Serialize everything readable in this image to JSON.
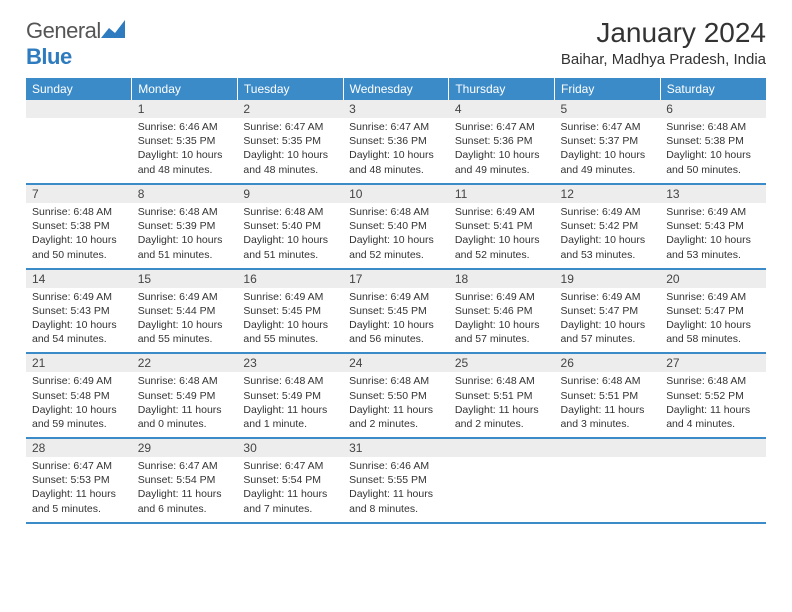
{
  "brand": {
    "name_a": "General",
    "name_b": "Blue"
  },
  "title": "January 2024",
  "location": "Baihar, Madhya Pradesh, India",
  "colors": {
    "header_bg": "#3b8bc9",
    "header_text": "#ffffff",
    "daynum_bg": "#ededed",
    "border": "#3b8bc9",
    "text": "#333333"
  },
  "day_labels": [
    "Sunday",
    "Monday",
    "Tuesday",
    "Wednesday",
    "Thursday",
    "Friday",
    "Saturday"
  ],
  "weeks": [
    [
      null,
      {
        "n": "1",
        "sunrise": "6:46 AM",
        "sunset": "5:35 PM",
        "daylight": "10 hours and 48 minutes."
      },
      {
        "n": "2",
        "sunrise": "6:47 AM",
        "sunset": "5:35 PM",
        "daylight": "10 hours and 48 minutes."
      },
      {
        "n": "3",
        "sunrise": "6:47 AM",
        "sunset": "5:36 PM",
        "daylight": "10 hours and 48 minutes."
      },
      {
        "n": "4",
        "sunrise": "6:47 AM",
        "sunset": "5:36 PM",
        "daylight": "10 hours and 49 minutes."
      },
      {
        "n": "5",
        "sunrise": "6:47 AM",
        "sunset": "5:37 PM",
        "daylight": "10 hours and 49 minutes."
      },
      {
        "n": "6",
        "sunrise": "6:48 AM",
        "sunset": "5:38 PM",
        "daylight": "10 hours and 50 minutes."
      }
    ],
    [
      {
        "n": "7",
        "sunrise": "6:48 AM",
        "sunset": "5:38 PM",
        "daylight": "10 hours and 50 minutes."
      },
      {
        "n": "8",
        "sunrise": "6:48 AM",
        "sunset": "5:39 PM",
        "daylight": "10 hours and 51 minutes."
      },
      {
        "n": "9",
        "sunrise": "6:48 AM",
        "sunset": "5:40 PM",
        "daylight": "10 hours and 51 minutes."
      },
      {
        "n": "10",
        "sunrise": "6:48 AM",
        "sunset": "5:40 PM",
        "daylight": "10 hours and 52 minutes."
      },
      {
        "n": "11",
        "sunrise": "6:49 AM",
        "sunset": "5:41 PM",
        "daylight": "10 hours and 52 minutes."
      },
      {
        "n": "12",
        "sunrise": "6:49 AM",
        "sunset": "5:42 PM",
        "daylight": "10 hours and 53 minutes."
      },
      {
        "n": "13",
        "sunrise": "6:49 AM",
        "sunset": "5:43 PM",
        "daylight": "10 hours and 53 minutes."
      }
    ],
    [
      {
        "n": "14",
        "sunrise": "6:49 AM",
        "sunset": "5:43 PM",
        "daylight": "10 hours and 54 minutes."
      },
      {
        "n": "15",
        "sunrise": "6:49 AM",
        "sunset": "5:44 PM",
        "daylight": "10 hours and 55 minutes."
      },
      {
        "n": "16",
        "sunrise": "6:49 AM",
        "sunset": "5:45 PM",
        "daylight": "10 hours and 55 minutes."
      },
      {
        "n": "17",
        "sunrise": "6:49 AM",
        "sunset": "5:45 PM",
        "daylight": "10 hours and 56 minutes."
      },
      {
        "n": "18",
        "sunrise": "6:49 AM",
        "sunset": "5:46 PM",
        "daylight": "10 hours and 57 minutes."
      },
      {
        "n": "19",
        "sunrise": "6:49 AM",
        "sunset": "5:47 PM",
        "daylight": "10 hours and 57 minutes."
      },
      {
        "n": "20",
        "sunrise": "6:49 AM",
        "sunset": "5:47 PM",
        "daylight": "10 hours and 58 minutes."
      }
    ],
    [
      {
        "n": "21",
        "sunrise": "6:49 AM",
        "sunset": "5:48 PM",
        "daylight": "10 hours and 59 minutes."
      },
      {
        "n": "22",
        "sunrise": "6:48 AM",
        "sunset": "5:49 PM",
        "daylight": "11 hours and 0 minutes."
      },
      {
        "n": "23",
        "sunrise": "6:48 AM",
        "sunset": "5:49 PM",
        "daylight": "11 hours and 1 minute."
      },
      {
        "n": "24",
        "sunrise": "6:48 AM",
        "sunset": "5:50 PM",
        "daylight": "11 hours and 2 minutes."
      },
      {
        "n": "25",
        "sunrise": "6:48 AM",
        "sunset": "5:51 PM",
        "daylight": "11 hours and 2 minutes."
      },
      {
        "n": "26",
        "sunrise": "6:48 AM",
        "sunset": "5:51 PM",
        "daylight": "11 hours and 3 minutes."
      },
      {
        "n": "27",
        "sunrise": "6:48 AM",
        "sunset": "5:52 PM",
        "daylight": "11 hours and 4 minutes."
      }
    ],
    [
      {
        "n": "28",
        "sunrise": "6:47 AM",
        "sunset": "5:53 PM",
        "daylight": "11 hours and 5 minutes."
      },
      {
        "n": "29",
        "sunrise": "6:47 AM",
        "sunset": "5:54 PM",
        "daylight": "11 hours and 6 minutes."
      },
      {
        "n": "30",
        "sunrise": "6:47 AM",
        "sunset": "5:54 PM",
        "daylight": "11 hours and 7 minutes."
      },
      {
        "n": "31",
        "sunrise": "6:46 AM",
        "sunset": "5:55 PM",
        "daylight": "11 hours and 8 minutes."
      },
      null,
      null,
      null
    ]
  ],
  "labels": {
    "sunrise": "Sunrise:",
    "sunset": "Sunset:",
    "daylight": "Daylight:"
  }
}
